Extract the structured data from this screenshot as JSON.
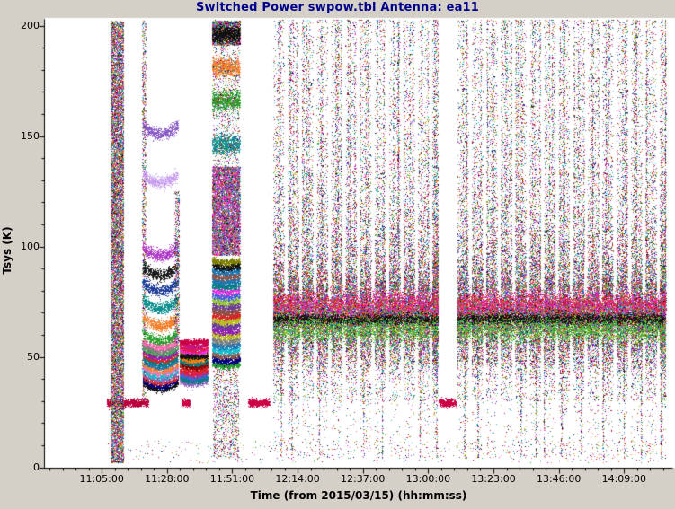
{
  "colors": {
    "background": "#d4d0c8",
    "plot_background": "#ffffff",
    "axis": "#000000",
    "title": "#00008b",
    "flagged_band_red": "#cc0044"
  },
  "chart_data": {
    "type": "scatter",
    "title": "Switched Power  swpow.tbl   Antenna: ea11",
    "xlabel": "Time (from 2015/03/15) (hh:mm:ss)",
    "ylabel": "Tsys (K)",
    "x_ticks": [
      {
        "label": "11:05:00",
        "t": 665
      },
      {
        "label": "11:28:00",
        "t": 688
      },
      {
        "label": "11:51:00",
        "t": 711
      },
      {
        "label": "12:14:00",
        "t": 734
      },
      {
        "label": "12:37:00",
        "t": 757
      },
      {
        "label": "13:00:00",
        "t": 780
      },
      {
        "label": "13:23:00",
        "t": 803
      },
      {
        "label": "13:46:00",
        "t": 826
      },
      {
        "label": "14:09:00",
        "t": 849
      }
    ],
    "y_ticks": [
      0,
      50,
      100,
      150,
      200
    ],
    "x_range_minutes": [
      645,
      866
    ],
    "y_range": [
      0,
      202
    ],
    "x_major_spacing_minutes": 23,
    "x_minor_spacing_minutes": 4.6,
    "y_minor_spacing": 10,
    "grid": false,
    "legend": "none",
    "seed": 20150315,
    "palette": [
      "#d62728",
      "#e6194b",
      "#f032e6",
      "#c71585",
      "#ff69b4",
      "#911eb4",
      "#6a3d9a",
      "#9467bd",
      "#4363d8",
      "#1f77b4",
      "#000080",
      "#17becf",
      "#42d4f4",
      "#008080",
      "#2ca02c",
      "#3cb44b",
      "#9acd32",
      "#808000",
      "#bcbd22",
      "#ff7f0e",
      "#f58231",
      "#8c564b",
      "#800000",
      "#111111",
      "#e377c2",
      "#7f7f7f"
    ],
    "pink_purple_palette": [
      "#f032e6",
      "#c71585",
      "#ff69b4",
      "#e377c2",
      "#911eb4",
      "#9467bd",
      "#6a3d9a",
      "#d62728",
      "#4363d8",
      "#2ca02c",
      "#f58231",
      "#17becf",
      "#111111"
    ],
    "segments": [
      {
        "name": "red-band-1",
        "type": "band",
        "t0": 667.0,
        "t1": 681.5,
        "k": 29,
        "sd": 0.9,
        "n": 1000,
        "colors": [
          "#cc0044",
          "#aa0033"
        ]
      },
      {
        "name": "cal-column-1",
        "type": "column",
        "t0": 668.3,
        "t1": 672.8,
        "k0": 2,
        "k1": 202,
        "n": 13000,
        "colors": "multi"
      },
      {
        "name": "arc-left-noise",
        "type": "column",
        "t0": 679.3,
        "t1": 680.6,
        "k0": 30,
        "k1": 202,
        "n": 1100,
        "colors": "multi"
      },
      {
        "name": "arc-bands",
        "type": "arcs",
        "t0": 679.5,
        "t1": 692.0,
        "sag": 4,
        "sd": 1.3,
        "n_per": 650,
        "bands": [
          {
            "k": 152,
            "color": "#8a5cc8"
          },
          {
            "k": 130,
            "color": "#c9a0f0"
          },
          {
            "k": 97,
            "color": "#b03cc8"
          },
          {
            "k": 88,
            "color": "#1a1a1a"
          },
          {
            "k": 81,
            "color": "#1f3d99"
          },
          {
            "k": 73,
            "color": "#0e8f8f"
          },
          {
            "k": 65,
            "color": "#f58231"
          },
          {
            "k": 58,
            "color": "#2ca02c"
          }
        ]
      },
      {
        "name": "arc-stack",
        "type": "stack",
        "t0": 679.5,
        "t1": 692.0,
        "k0": 36,
        "k1": 55,
        "rows": 14,
        "sd": 0.7,
        "sag": 3,
        "n": 6000,
        "colors": "multi"
      },
      {
        "name": "arc-right-noise",
        "type": "column",
        "t0": 690.8,
        "t1": 692.4,
        "k0": 55,
        "k1": 125,
        "n": 600,
        "colors": "multi"
      },
      {
        "name": "block2-stack",
        "type": "stack",
        "t0": 692.6,
        "t1": 702.5,
        "k0": 38,
        "k1": 55,
        "rows": 12,
        "sd": 0.7,
        "sag": 1.5,
        "n": 5200,
        "colors": "multi"
      },
      {
        "name": "block2-red-line",
        "type": "band",
        "t0": 692.6,
        "t1": 702.5,
        "k": 56.5,
        "sd": 0.6,
        "n": 550,
        "colors": [
          "#cc0044"
        ]
      },
      {
        "name": "block2-black-line",
        "type": "band",
        "t0": 692.6,
        "t1": 702.5,
        "k": 50,
        "sd": 0.5,
        "n": 380,
        "colors": [
          "#111111"
        ]
      },
      {
        "name": "block2-red-low",
        "type": "band",
        "t0": 693.2,
        "t1": 696.2,
        "k": 29,
        "sd": 0.8,
        "n": 220,
        "colors": [
          "#cc0044"
        ]
      },
      {
        "name": "col2-top-smear",
        "type": "column",
        "t0": 704.0,
        "t1": 713.8,
        "k0": 191,
        "k1": 202,
        "n": 2600,
        "colors": "multi"
      },
      {
        "name": "col2-black-band",
        "type": "band",
        "t0": 704.0,
        "t1": 713.8,
        "k": 196,
        "sd": 2.0,
        "n": 900,
        "colors": [
          "#111111"
        ]
      },
      {
        "name": "col2-orange-band",
        "type": "band",
        "t0": 704.0,
        "t1": 713.8,
        "k": 181,
        "sd": 2.2,
        "n": 950,
        "colors": [
          "#f58231"
        ]
      },
      {
        "name": "col2-green-band",
        "type": "band",
        "t0": 704.0,
        "t1": 713.8,
        "k": 166,
        "sd": 2.2,
        "n": 950,
        "colors": [
          "#2ca02c"
        ]
      },
      {
        "name": "col2-teal-band",
        "type": "band",
        "t0": 704.0,
        "t1": 713.8,
        "k": 146,
        "sd": 2.2,
        "n": 950,
        "colors": [
          "#0e8f8f"
        ]
      },
      {
        "name": "col2-upper-sparse",
        "type": "column",
        "t0": 704.2,
        "t1": 713.6,
        "k0": 136,
        "k1": 191,
        "n": 900,
        "colors": "multi"
      },
      {
        "name": "col2-blob",
        "type": "column",
        "t0": 704.0,
        "t1": 713.8,
        "k0": 96,
        "k1": 136,
        "n": 8000,
        "colors": "pinkpurple"
      },
      {
        "name": "col2-stack",
        "type": "stack",
        "t0": 704.0,
        "t1": 713.8,
        "k0": 46,
        "k1": 93,
        "rows": 22,
        "sd": 0.8,
        "sag": 1,
        "n": 10000,
        "colors": "multi"
      },
      {
        "name": "col2-lower-sparse",
        "type": "column",
        "t0": 704.4,
        "t1": 713.4,
        "k0": 4,
        "k1": 45,
        "n": 1000,
        "colors": "multi"
      },
      {
        "name": "red-band-2",
        "type": "band",
        "t0": 716.8,
        "t1": 724.2,
        "k": 29,
        "sd": 0.8,
        "n": 650,
        "colors": [
          "#cc0044"
        ]
      },
      {
        "name": "scans-1",
        "type": "scans",
        "t0": 725.5,
        "t1": 783.5,
        "period": 5.1,
        "width": 3.9,
        "n_per": 2500
      },
      {
        "name": "scans-1-band",
        "type": "band",
        "t0": 725.5,
        "t1": 783.5,
        "k": 69,
        "sd": 4.0,
        "n": 9000,
        "colors": "multi"
      },
      {
        "name": "scans-1-black",
        "type": "band",
        "t0": 725.5,
        "t1": 783.5,
        "k": 67,
        "sd": 1.2,
        "n": 2500,
        "colors": [
          "#111111"
        ]
      },
      {
        "name": "scans-1-red",
        "type": "band",
        "t0": 725.5,
        "t1": 783.5,
        "k": 74,
        "sd": 3.0,
        "n": 2600,
        "colors": [
          "#d62728",
          "#e6194b",
          "#f032e6"
        ]
      },
      {
        "name": "scans-1-green",
        "type": "band",
        "t0": 725.5,
        "t1": 783.5,
        "k": 62,
        "sd": 3.2,
        "n": 2600,
        "colors": [
          "#2ca02c",
          "#3cb44b",
          "#9acd32"
        ]
      },
      {
        "name": "gap-red-band",
        "type": "band",
        "t0": 783.9,
        "t1": 789.9,
        "k": 29,
        "sd": 0.8,
        "n": 520,
        "colors": [
          "#cc0044"
        ]
      },
      {
        "name": "scans-2",
        "type": "scans",
        "t0": 790.3,
        "t1": 863.8,
        "period": 5.1,
        "width": 3.9,
        "n_per": 2500
      },
      {
        "name": "scans-2-band",
        "type": "band",
        "t0": 790.3,
        "t1": 863.8,
        "k": 69,
        "sd": 4.0,
        "n": 11500,
        "colors": "multi"
      },
      {
        "name": "scans-2-black",
        "type": "band",
        "t0": 790.3,
        "t1": 863.8,
        "k": 67,
        "sd": 1.2,
        "n": 3200,
        "colors": [
          "#111111"
        ]
      },
      {
        "name": "scans-2-red",
        "type": "band",
        "t0": 790.3,
        "t1": 863.8,
        "k": 74,
        "sd": 3.0,
        "n": 3300,
        "colors": [
          "#d62728",
          "#e6194b",
          "#f032e6"
        ]
      },
      {
        "name": "scans-2-green",
        "type": "band",
        "t0": 790.3,
        "t1": 863.8,
        "k": 62,
        "sd": 3.2,
        "n": 3300,
        "colors": [
          "#2ca02c",
          "#3cb44b",
          "#9acd32"
        ]
      },
      {
        "name": "bottom-sparse",
        "type": "column",
        "t0": 667,
        "t1": 863,
        "k0": 2,
        "k1": 12,
        "n": 450,
        "colors": "multi"
      }
    ]
  }
}
